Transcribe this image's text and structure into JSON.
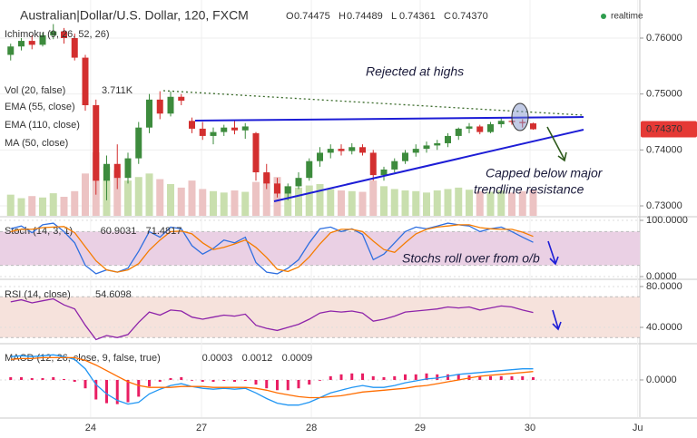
{
  "chart_data": [
    {
      "type": "candlestick",
      "title": "Australian|Dollar/U.S. Dollar, 120, FXCM",
      "ohlc_letters": [
        "O",
        "H",
        "L",
        "C"
      ],
      "ohlc_labels": [
        "0.74475",
        "0.74489",
        "0.74361",
        "0.74370"
      ],
      "realtime_label": "realtime",
      "indicator_labels": [
        "Ichimoku (9, 26, 52, 26)",
        "EMA (55, close)",
        "EMA (110, close)",
        "MA (50, close)"
      ],
      "volume_name": "Vol (20, false)",
      "volume_value_label": "3.711K",
      "annotations": [
        "Rejected at highs",
        "Capped below major",
        "trendline resistance",
        "Stochs roll over from o/b"
      ],
      "up_color": "#3d8b3d",
      "down_color": "#d32f2f",
      "volume_up_color": "#c9dfae",
      "volume_down_color": "#ecc3c3",
      "xlim": [
        -1,
        59
      ],
      "xticks": [
        {
          "value": 7.5,
          "label": "24"
        },
        {
          "value": 17.9,
          "label": "27"
        },
        {
          "value": 28.2,
          "label": "28"
        },
        {
          "value": 38.4,
          "label": "29"
        },
        {
          "value": 48.7,
          "label": "30"
        },
        {
          "value": 58.8,
          "label": "Ju"
        }
      ],
      "ylim": [
        0.72822,
        0.76681
      ],
      "yticks": [
        {
          "value": 0.73,
          "label": "0.73000"
        },
        {
          "value": 0.74,
          "label": "0.74000"
        },
        {
          "value": 0.75,
          "label": "0.75000"
        },
        {
          "value": 0.76,
          "label": "0.76000"
        }
      ],
      "grid": true,
      "open": [
        0.757,
        0.7585,
        0.7595,
        0.7588,
        0.7605,
        0.7612,
        0.76,
        0.7565,
        0.748,
        0.7345,
        0.7375,
        0.735,
        0.7385,
        0.744,
        0.749,
        0.7465,
        0.7495,
        0.7452,
        0.7438,
        0.7425,
        0.7432,
        0.744,
        0.7435,
        0.743,
        0.736,
        0.734,
        0.7322,
        0.7335,
        0.735,
        0.738,
        0.7395,
        0.7402,
        0.7398,
        0.7405,
        0.7395,
        0.7355,
        0.7365,
        0.738,
        0.7395,
        0.7402,
        0.7408,
        0.7412,
        0.7425,
        0.7438,
        0.7442,
        0.7432,
        0.7446,
        0.7452,
        0.745,
        0.74475
      ],
      "high": [
        0.759,
        0.76,
        0.7605,
        0.761,
        0.7625,
        0.7618,
        0.7608,
        0.757,
        0.749,
        0.739,
        0.741,
        0.7395,
        0.745,
        0.75,
        0.7505,
        0.7505,
        0.75,
        0.7458,
        0.745,
        0.744,
        0.7445,
        0.7452,
        0.7448,
        0.7432,
        0.7375,
        0.735,
        0.734,
        0.736,
        0.7385,
        0.7405,
        0.741,
        0.741,
        0.7412,
        0.741,
        0.74,
        0.737,
        0.7385,
        0.74,
        0.741,
        0.7415,
        0.7418,
        0.743,
        0.744,
        0.7448,
        0.7445,
        0.745,
        0.7458,
        0.746,
        0.7455,
        0.74489
      ],
      "low": [
        0.756,
        0.7578,
        0.758,
        0.7585,
        0.7598,
        0.759,
        0.756,
        0.747,
        0.732,
        0.731,
        0.733,
        0.734,
        0.7375,
        0.743,
        0.7455,
        0.746,
        0.748,
        0.743,
        0.7418,
        0.741,
        0.7425,
        0.7428,
        0.742,
        0.7345,
        0.733,
        0.7315,
        0.731,
        0.733,
        0.7345,
        0.737,
        0.7385,
        0.739,
        0.7392,
        0.739,
        0.7345,
        0.7345,
        0.736,
        0.7375,
        0.7388,
        0.7395,
        0.74,
        0.7405,
        0.7418,
        0.743,
        0.7428,
        0.743,
        0.744,
        0.7445,
        0.744,
        0.74361
      ],
      "close": [
        0.7585,
        0.7595,
        0.7588,
        0.7605,
        0.7612,
        0.76,
        0.7565,
        0.748,
        0.7345,
        0.7375,
        0.735,
        0.7385,
        0.744,
        0.749,
        0.7465,
        0.7495,
        0.7488,
        0.7438,
        0.7425,
        0.7432,
        0.744,
        0.7435,
        0.7442,
        0.736,
        0.734,
        0.7322,
        0.7335,
        0.735,
        0.738,
        0.7395,
        0.7402,
        0.7398,
        0.7405,
        0.7395,
        0.7355,
        0.7365,
        0.738,
        0.7395,
        0.7402,
        0.7408,
        0.7412,
        0.7425,
        0.7438,
        0.7442,
        0.7432,
        0.7446,
        0.7452,
        0.745,
        0.7448,
        0.7437
      ],
      "volume": [
        3000,
        2500,
        2800,
        2600,
        3200,
        2700,
        3500,
        6000,
        9000,
        7000,
        6500,
        5000,
        5500,
        6000,
        5200,
        4500,
        4000,
        5000,
        3800,
        3500,
        3300,
        3600,
        3400,
        4800,
        6000,
        5500,
        4200,
        4000,
        4300,
        4500,
        3800,
        3600,
        3500,
        3400,
        5000,
        4200,
        3800,
        3600,
        3500,
        3300,
        3600,
        3800,
        4000,
        3700,
        3500,
        3400,
        3600,
        3300,
        3500,
        3711
      ]
    },
    {
      "type": "line",
      "title": "Stoch (14, 3, 1)",
      "ylim": [
        -3.2,
        104.8
      ],
      "yticks": [
        {
          "value": 100,
          "label": "100.0000"
        },
        {
          "value": 0,
          "label": "0.0000"
        }
      ],
      "band": [
        20,
        80
      ],
      "band_color": "#ead0e4",
      "series": [
        {
          "color": "#2f6fe0",
          "values": [
            85,
            90,
            78,
            92,
            95,
            80,
            60,
            20,
            5,
            12,
            8,
            15,
            45,
            80,
            70,
            88,
            85,
            55,
            40,
            50,
            65,
            60,
            70,
            25,
            8,
            5,
            15,
            30,
            60,
            85,
            88,
            80,
            85,
            75,
            30,
            40,
            60,
            80,
            88,
            85,
            90,
            95,
            92,
            90,
            80,
            85,
            88,
            80,
            70,
            60.9031
          ]
        },
        {
          "color": "#f57c00",
          "values": [
            80,
            84,
            84,
            87,
            88,
            89,
            78,
            53,
            28,
            12,
            8,
            12,
            23,
            47,
            65,
            80,
            81,
            76,
            60,
            48,
            52,
            58,
            65,
            52,
            34,
            13,
            9,
            17,
            35,
            58,
            78,
            84,
            84,
            80,
            63,
            48,
            43,
            60,
            76,
            84,
            88,
            90,
            92,
            92,
            87,
            85,
            84,
            84,
            79,
            71.4817
          ]
        }
      ]
    },
    {
      "type": "line",
      "title": "RSI (14, close)",
      "ylim": [
        24.9,
        85.3
      ],
      "yticks": [
        {
          "value": 80,
          "label": "80.0000"
        },
        {
          "value": 40,
          "label": "40.0000"
        }
      ],
      "band": [
        30,
        70
      ],
      "band_color": "#f6e2dc",
      "series": [
        {
          "color": "#8e24aa",
          "values": [
            65,
            67,
            64,
            66,
            68,
            62,
            58,
            42,
            28,
            32,
            30,
            33,
            45,
            55,
            52,
            57,
            56,
            50,
            48,
            50,
            52,
            51,
            53,
            42,
            39,
            37,
            40,
            43,
            48,
            54,
            56,
            55,
            56,
            54,
            46,
            48,
            51,
            55,
            56,
            57,
            58,
            60,
            59,
            60,
            57,
            59,
            61,
            60,
            57,
            54.6098
          ]
        }
      ]
    },
    {
      "type": "line",
      "title": "MACD (12, 26, close, 9, false, true)",
      "ylim": [
        -0.004,
        0.0038
      ],
      "yticks": [
        {
          "value": 0,
          "label": "0.0000"
        }
      ],
      "series": [
        {
          "color": "#e91e63",
          "style": "histogram",
          "values": [
            0.0003,
            0.0003,
            0.0002,
            0.0002,
            0.0003,
            0.0001,
            -0.0002,
            -0.0009,
            -0.0021,
            -0.0025,
            -0.0026,
            -0.0024,
            -0.0018,
            -0.0007,
            -0.0002,
            0.0002,
            0.0003,
            0,
            -0.0002,
            -0.0002,
            -0.0001,
            -0.0002,
            -0.0001,
            -0.0005,
            -0.0009,
            -0.0011,
            -0.0011,
            -0.0009,
            -0.0005,
            0,
            0.0004,
            0.0006,
            0.0007,
            0.0007,
            0.0004,
            0.0003,
            0.0004,
            0.0006,
            0.0006,
            0.0007,
            0.0006,
            0.0006,
            0.0006,
            0.0005,
            0.0004,
            0.0004,
            0.0004,
            0.0004,
            0.0004,
            0.0003
          ]
        },
        {
          "color": "#2196f3",
          "values": [
            0.0025,
            0.0026,
            0.0025,
            0.0026,
            0.0027,
            0.0025,
            0.0022,
            0.0012,
            -0.0005,
            -0.0015,
            -0.0022,
            -0.0026,
            -0.0024,
            -0.0015,
            -0.001,
            -0.0006,
            -0.0004,
            -0.0007,
            -0.0009,
            -0.001,
            -0.0009,
            -0.001,
            -0.0009,
            -0.0014,
            -0.002,
            -0.0025,
            -0.0027,
            -0.0027,
            -0.0024,
            -0.0019,
            -0.0014,
            -0.0011,
            -0.0008,
            -0.0006,
            -0.0008,
            -0.0008,
            -0.0006,
            -0.0003,
            -0.0001,
            0.0001,
            0.0002,
            0.0004,
            0.0006,
            0.0007,
            0.0008,
            0.0009,
            0.001,
            0.0011,
            0.0012,
            0.0012
          ]
        },
        {
          "color": "#ff6d00",
          "values": [
            0.0022,
            0.0023,
            0.0023,
            0.0024,
            0.0024,
            0.0024,
            0.0024,
            0.0021,
            0.0016,
            0.001,
            0.0004,
            -0.0002,
            -0.0006,
            -0.0008,
            -0.0008,
            -0.0008,
            -0.0007,
            -0.0007,
            -0.0007,
            -0.0008,
            -0.0008,
            -0.0008,
            -0.0008,
            -0.0009,
            -0.0011,
            -0.0014,
            -0.0016,
            -0.0018,
            -0.0019,
            -0.0019,
            -0.0018,
            -0.0017,
            -0.0015,
            -0.0013,
            -0.0012,
            -0.0011,
            -0.001,
            -0.0009,
            -0.0007,
            -0.0006,
            -0.0004,
            -0.0002,
            0,
            0.0002,
            0.0004,
            0.0005,
            0.0006,
            0.0007,
            0.0008,
            0.0009
          ]
        }
      ]
    }
  ]
}
